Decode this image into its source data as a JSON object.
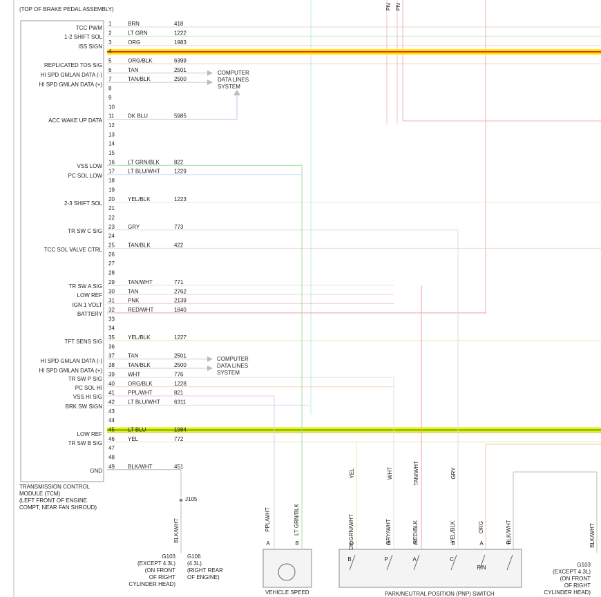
{
  "header": {
    "title": "(TOP OF BRAKE PEDAL ASSEMBLY)",
    "top_labels": [
      "PN",
      "PN"
    ]
  },
  "pins": [
    {
      "number": 1,
      "wire_color": "BRN",
      "circuit": 418
    },
    {
      "number": 2,
      "wire_color": "LT GRN",
      "circuit": 1222
    },
    {
      "number": 3,
      "wire_color": "ORG",
      "circuit": 1983
    },
    {
      "number": 4
    },
    {
      "number": 5,
      "wire_color": "ORG/BLK",
      "circuit": 6399
    },
    {
      "number": 6,
      "wire_color": "TAN",
      "circuit": 2501
    },
    {
      "number": 7,
      "wire_color": "TAN/BLK",
      "circuit": 2500
    },
    {
      "number": 8
    },
    {
      "number": 9
    },
    {
      "number": 10
    },
    {
      "number": 11,
      "wire_color": "DK BLU",
      "circuit": 5985
    },
    {
      "number": 12
    },
    {
      "number": 13
    },
    {
      "number": 14
    },
    {
      "number": 15
    },
    {
      "number": 16,
      "wire_color": "LT GRN/BLK",
      "circuit": 822
    },
    {
      "number": 17,
      "wire_color": "LT BLU/WHT",
      "circuit": 1229
    },
    {
      "number": 18
    },
    {
      "number": 19
    },
    {
      "number": 20,
      "wire_color": "YEL/BLK",
      "circuit": 1223
    },
    {
      "number": 21
    },
    {
      "number": 22
    },
    {
      "number": 23,
      "wire_color": "GRY",
      "circuit": 773
    },
    {
      "number": 24
    },
    {
      "number": 25,
      "wire_color": "TAN/BLK",
      "circuit": 422
    },
    {
      "number": 26
    },
    {
      "number": 27
    },
    {
      "number": 28
    },
    {
      "number": 29,
      "wire_color": "TAN/WHT",
      "circuit": 771
    },
    {
      "number": 30,
      "wire_color": "TAN",
      "circuit": 2762
    },
    {
      "number": 31,
      "wire_color": "PNK",
      "circuit": 2139
    },
    {
      "number": 32,
      "wire_color": "RED/WHT",
      "circuit": 1840
    },
    {
      "number": 33
    },
    {
      "number": 34
    },
    {
      "number": 35,
      "wire_color": "YEL/BLK",
      "circuit": 1227
    },
    {
      "number": 36
    },
    {
      "number": 37,
      "wire_color": "TAN",
      "circuit": 2501
    },
    {
      "number": 38,
      "wire_color": "TAN/BLK",
      "circuit": 2500
    },
    {
      "number": 39,
      "wire_color": "WHT",
      "circuit": 776
    },
    {
      "number": 40,
      "wire_color": "ORG/BLK",
      "circuit": 1228
    },
    {
      "number": 41,
      "wire_color": "PPL/WHT",
      "circuit": 821
    },
    {
      "number": 42,
      "wire_color": "LT BLU/WHT",
      "circuit": 6311
    },
    {
      "number": 43
    },
    {
      "number": 44
    },
    {
      "number": 45,
      "wire_color": "LT BLU",
      "circuit": 1984
    },
    {
      "number": 46,
      "wire_color": "YEL",
      "circuit": 772
    },
    {
      "number": 47
    },
    {
      "number": 48
    },
    {
      "number": 49,
      "wire_color": "BLK/WHT",
      "circuit": 451
    }
  ],
  "functions": [
    "TCC PWM",
    "1-2 SHIFT SOL",
    "ISS SIGN",
    "REPLICATED TOS SIG",
    "HI SPD GMLAN DATA (-)",
    "HI SPD GMLAN DATA (+)",
    "ACC WAKE UP DATA",
    "VSS LOW",
    "PC SOL LOW",
    "2-3 SHIFT SOL",
    "TR SW C SIG",
    "TCC SOL VALVE CTRL",
    "TR SW A SIG",
    "LOW REF",
    "IGN 1 VOLT",
    "BATTERY",
    "TFT SENS SIG",
    "HI SPD GMLAN DATA (-)",
    "HI SPD GMLAN DATA (+)",
    "TR SW P SIG",
    "PC SOL HI",
    "VSS HI SIG",
    "BRK SW SIGN",
    "LOW REF",
    "TR SW B SIG",
    "GND"
  ],
  "data_lines": [
    [
      "COMPUTER",
      "DATA LINES",
      "SYSTEM"
    ],
    [
      "COMPUTER",
      "DATA LINES",
      "SYSTEM"
    ]
  ],
  "module": [
    "TRANSMISSION CONTROL",
    "MODULE (TCM)",
    "(LEFT FRONT OF ENGINE",
    "COMPT, NEAR FAN SHROUD)"
  ],
  "splice": "J105",
  "ground_wire": "BLK/WHT",
  "g103": [
    "G103",
    "(EXCEPT 4.3L)",
    "(ON FRONT",
    "OF RIGHT",
    "CYLINDER HEAD)"
  ],
  "g106": [
    "G106",
    "(4.3L)",
    "(RIGHT REAR",
    "OF ENGINE)"
  ],
  "vss": {
    "wires": [
      {
        "color": "PPL/WHT",
        "pin": "A"
      },
      {
        "color": "LT GRN/BLK",
        "pin": "B"
      }
    ],
    "name": "VEHICLE SPEED"
  },
  "pnp": {
    "top_wires": [
      "YEL",
      "WHT",
      "TAN/WHT",
      "GRY"
    ],
    "wires": [
      {
        "color": "DK GRN/WHT",
        "pin": "D"
      },
      {
        "color": "GRY/WHT",
        "pin": "E"
      },
      {
        "color": "RED/BLK",
        "pin": "C"
      },
      {
        "color": "YEL/BLK",
        "pin": "B"
      },
      {
        "color": "ORG",
        "pin": "A"
      },
      {
        "color": "BLK/WHT",
        "pin": "F"
      }
    ],
    "contacts": [
      "B",
      "P",
      "A",
      "C"
    ],
    "pn": "P/N",
    "name": "PARK/NEUTRAL POSITION (PNP) SWITCH"
  },
  "right": {
    "wire": "BLK/WHT",
    "ground": [
      "G103",
      "(EXCEPT 4.3L)",
      "(ON FRONT",
      "OF RIGHT",
      "CYLINDER HEAD)"
    ]
  }
}
